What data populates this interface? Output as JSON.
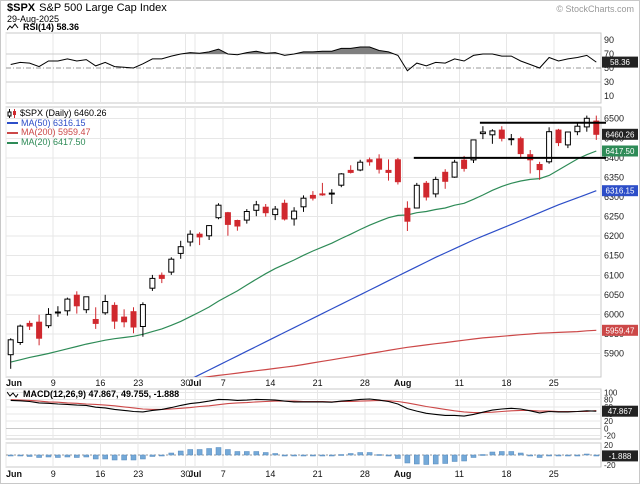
{
  "header": {
    "symbol": "$SPX",
    "name": "S&P 500 Large Cap Index",
    "date": "29-Aug-2025",
    "copyright": "© StockCharts.com"
  },
  "legends": {
    "rsi": "RSI(14) 58.36",
    "macd": "MACD(12,26,9) 47.867, 49.755, -1.888",
    "main": [
      {
        "label": "$SPX (Daily) 6460.26",
        "color": "#000000"
      },
      {
        "label": "MA(50) 6316.15",
        "color": "#2d4ec8"
      },
      {
        "label": "MA(200) 5959.47",
        "color": "#cc4848"
      },
      {
        "label": "MA(20) 6417.50",
        "color": "#2e8b57"
      }
    ]
  },
  "colors": {
    "grid": "#e7e7e7",
    "panel_border": "#c9c9c9",
    "up": "#000000",
    "down": "#d0282e",
    "ma20": "#2e8b57",
    "ma50": "#2d4ec8",
    "ma200": "#cc4848",
    "macd_line": "#000000",
    "macd_signal": "#cc4848",
    "hist_bar": "#74a9d8",
    "hist_bar_edge": "#5588bb",
    "box_dark": "#222222",
    "axis_text": "#222222"
  },
  "chart_data": {
    "type": "candlestick",
    "title": "$SPX S&P 500 Large Cap Index",
    "date": "29-Aug-2025",
    "x_ticks": {
      "indices": [
        0,
        5,
        10,
        14,
        19,
        20,
        23,
        28,
        33,
        38,
        42,
        48,
        53,
        58
      ],
      "labels": [
        "Jun",
        "9",
        "16",
        "23",
        "30",
        "Jul",
        "7",
        "14",
        "21",
        "28",
        "Aug",
        "11",
        "18",
        "25"
      ],
      "is_month": [
        true,
        false,
        false,
        false,
        false,
        true,
        false,
        false,
        false,
        false,
        true,
        false,
        false,
        false
      ]
    },
    "price": {
      "ylim": [
        5840,
        6530
      ],
      "y_ticks": [
        5900,
        5950,
        6000,
        6050,
        6100,
        6150,
        6200,
        6250,
        6300,
        6350,
        6400,
        6450,
        6500
      ],
      "last_label": "6460.26",
      "ma_labels": {
        "ma20": "6417.50",
        "ma50": "6316.15",
        "ma200": "5959.47"
      },
      "trendlines": [
        {
          "price": 6490,
          "from_index": 50
        },
        {
          "price": 6400,
          "from_index": 43
        }
      ],
      "ohlc": [
        [
          5897,
          5939,
          5861,
          5935
        ],
        [
          5928,
          5974,
          5922,
          5970
        ],
        [
          5977,
          5984,
          5960,
          5970
        ],
        [
          5980,
          5999,
          5921,
          5939
        ],
        [
          5971,
          6016,
          5965,
          6000
        ],
        [
          6004,
          6021,
          5994,
          6006
        ],
        [
          6009,
          6043,
          5997,
          6039
        ],
        [
          6049,
          6059,
          6002,
          6022
        ],
        [
          6012,
          6045,
          6003,
          6045
        ],
        [
          5987,
          6018,
          5963,
          5977
        ],
        [
          6004,
          6050,
          5999,
          6033
        ],
        [
          6023,
          6031,
          5963,
          5983
        ],
        [
          5993,
          6013,
          5967,
          5981
        ],
        [
          6007,
          6018,
          5952,
          5968
        ],
        [
          5969,
          6031,
          5943,
          6025
        ],
        [
          6067,
          6101,
          6060,
          6092
        ],
        [
          6100,
          6107,
          6080,
          6092
        ],
        [
          6108,
          6146,
          6101,
          6141
        ],
        [
          6156,
          6188,
          6142,
          6173
        ],
        [
          6185,
          6215,
          6174,
          6205
        ],
        [
          6205,
          6210,
          6177,
          6198
        ],
        [
          6201,
          6228,
          6190,
          6227
        ],
        [
          6247,
          6284,
          6243,
          6279
        ],
        [
          6260,
          6262,
          6201,
          6230
        ],
        [
          6240,
          6242,
          6214,
          6226
        ],
        [
          6241,
          6269,
          6232,
          6263
        ],
        [
          6266,
          6290,
          6251,
          6280
        ],
        [
          6274,
          6282,
          6250,
          6260
        ],
        [
          6255,
          6277,
          6241,
          6269
        ],
        [
          6284,
          6293,
          6240,
          6244
        ],
        [
          6244,
          6274,
          6227,
          6264
        ],
        [
          6275,
          6304,
          6262,
          6297
        ],
        [
          6304,
          6315,
          6291,
          6297
        ],
        [
          6308,
          6336,
          6303,
          6306
        ],
        [
          6310,
          6320,
          6282,
          6310
        ],
        [
          6330,
          6361,
          6325,
          6359
        ],
        [
          6368,
          6381,
          6360,
          6363
        ],
        [
          6369,
          6395,
          6366,
          6389
        ],
        [
          6395,
          6401,
          6380,
          6390
        ],
        [
          6397,
          6409,
          6360,
          6371
        ],
        [
          6368,
          6396,
          6342,
          6363
        ],
        [
          6395,
          6400,
          6332,
          6339
        ],
        [
          6271,
          6289,
          6213,
          6238
        ],
        [
          6272,
          6336,
          6271,
          6330
        ],
        [
          6335,
          6341,
          6291,
          6300
        ],
        [
          6308,
          6352,
          6299,
          6345
        ],
        [
          6363,
          6371,
          6321,
          6340
        ],
        [
          6351,
          6395,
          6349,
          6389
        ],
        [
          6394,
          6405,
          6365,
          6373
        ],
        [
          6395,
          6447,
          6387,
          6446
        ],
        [
          6462,
          6481,
          6448,
          6466
        ],
        [
          6459,
          6473,
          6436,
          6469
        ],
        [
          6471,
          6481,
          6442,
          6450
        ],
        [
          6449,
          6461,
          6432,
          6449
        ],
        [
          6449,
          6454,
          6401,
          6411
        ],
        [
          6408,
          6420,
          6360,
          6395
        ],
        [
          6383,
          6390,
          6344,
          6370
        ],
        [
          6390,
          6478,
          6385,
          6467
        ],
        [
          6471,
          6474,
          6430,
          6439
        ],
        [
          6433,
          6466,
          6425,
          6466
        ],
        [
          6467,
          6488,
          6458,
          6481
        ],
        [
          6479,
          6508,
          6467,
          6501
        ],
        [
          6494,
          6508,
          6446,
          6460.26
        ]
      ],
      "ma20": [
        5878,
        5884,
        5890,
        5895,
        5900,
        5906,
        5912,
        5918,
        5924,
        5929,
        5934,
        5938,
        5941,
        5944,
        5949,
        5956,
        5963,
        5972,
        5982,
        5994,
        6006,
        6019,
        6034,
        6047,
        6060,
        6075,
        6090,
        6104,
        6117,
        6128,
        6139,
        6151,
        6162,
        6172,
        6182,
        6194,
        6205,
        6217,
        6228,
        6238,
        6247,
        6253,
        6254,
        6260,
        6263,
        6268,
        6272,
        6279,
        6284,
        6294,
        6305,
        6317,
        6327,
        6335,
        6341,
        6345,
        6347,
        6355,
        6369,
        6383,
        6397,
        6408,
        6417.5
      ],
      "ma50": [
        5640,
        5650,
        5660,
        5670,
        5680,
        5690,
        5700,
        5710,
        5720,
        5730,
        5740,
        5750,
        5760,
        5770,
        5780,
        5790,
        5800,
        5810,
        5822,
        5834,
        5846,
        5858,
        5870,
        5882,
        5894,
        5906,
        5918,
        5930,
        5942,
        5954,
        5966,
        5978,
        5990,
        6002,
        6014,
        6026,
        6038,
        6050,
        6062,
        6074,
        6086,
        6098,
        6110,
        6122,
        6134,
        6146,
        6157,
        6168,
        6179,
        6190,
        6200,
        6210,
        6220,
        6230,
        6240,
        6250,
        6260,
        6270,
        6280,
        6289,
        6298,
        6307,
        6316.15
      ],
      "ma200": [
        5778,
        5781,
        5784,
        5787,
        5790,
        5793,
        5796,
        5799,
        5802,
        5805,
        5808,
        5811,
        5814,
        5817,
        5820,
        5823,
        5826,
        5829,
        5832,
        5835,
        5838,
        5841,
        5844,
        5847,
        5850,
        5853,
        5856,
        5859,
        5862,
        5865,
        5868,
        5872,
        5876,
        5880,
        5884,
        5888,
        5892,
        5896,
        5900,
        5904,
        5908,
        5912,
        5916,
        5919,
        5922,
        5925,
        5928,
        5931,
        5934,
        5937,
        5940,
        5942,
        5944,
        5946,
        5948,
        5950,
        5952,
        5953,
        5954,
        5955,
        5956,
        5958,
        5959.47
      ]
    },
    "rsi": {
      "ylim": [
        0,
        100
      ],
      "y_ticks": [
        90,
        70,
        50,
        30,
        10
      ],
      "overbought": 70,
      "oversold": 30,
      "mid": 50,
      "last_label": "58.36",
      "values": [
        55,
        58,
        57,
        52,
        60,
        60,
        63,
        60,
        62,
        53,
        58,
        52,
        51,
        50,
        56,
        63,
        63,
        67,
        70,
        72,
        71,
        73,
        77,
        70,
        69,
        72,
        74,
        71,
        72,
        68,
        70,
        73,
        73,
        74,
        74,
        78,
        78,
        80,
        80,
        75,
        73,
        68,
        46,
        57,
        53,
        58,
        57,
        63,
        60,
        68,
        70,
        70,
        67,
        67,
        60,
        55,
        50,
        65,
        60,
        63,
        65,
        68,
        58.36
      ]
    },
    "macd": {
      "ylim": [
        -30,
        110
      ],
      "y_ticks": [
        100,
        80,
        60,
        40,
        20,
        0,
        -20
      ],
      "last_label": "47.867",
      "macd": [
        78,
        77,
        75,
        71,
        70,
        68,
        67,
        65,
        64,
        59,
        57,
        53,
        50,
        47,
        46,
        50,
        53,
        58,
        64,
        69,
        72,
        76,
        81,
        80,
        78,
        79,
        81,
        80,
        79,
        76,
        74,
        74,
        74,
        74,
        73,
        76,
        78,
        81,
        82,
        79,
        75,
        68,
        55,
        48,
        42,
        39,
        36,
        36,
        34,
        39,
        45,
        51,
        54,
        56,
        54,
        49,
        43,
        47,
        46,
        46,
        47,
        49,
        47.867
      ],
      "signal": [
        80,
        79,
        78,
        76,
        74,
        73,
        71,
        70,
        68,
        67,
        65,
        63,
        60,
        57,
        54,
        53,
        53,
        54,
        56,
        58,
        61,
        63,
        66,
        69,
        71,
        72,
        74,
        75,
        76,
        76,
        76,
        75,
        75,
        75,
        74,
        75,
        75,
        76,
        77,
        78,
        77,
        75,
        71,
        66,
        61,
        57,
        53,
        49,
        46,
        44,
        44,
        45,
        47,
        49,
        50,
        50,
        48,
        48,
        47,
        47,
        47,
        47,
        49.755
      ]
    },
    "hist": {
      "ylim": [
        -24,
        24
      ],
      "y_ticks": [
        20,
        0,
        -20
      ],
      "last_label": "-1.888",
      "values": [
        -2,
        -2,
        -3,
        -5,
        -4,
        -5,
        -4,
        -5,
        -4,
        -8,
        -8,
        -10,
        -10,
        -10,
        -8,
        -3,
        0,
        4,
        8,
        11,
        11,
        13,
        15,
        11,
        7,
        7,
        7,
        5,
        3,
        0,
        -2,
        -1,
        -1,
        -1,
        -1,
        1,
        3,
        5,
        5,
        1,
        -2,
        -7,
        -16,
        -18,
        -19,
        -18,
        -17,
        -13,
        -12,
        -5,
        1,
        6,
        7,
        7,
        4,
        -1,
        -5,
        0,
        -2,
        -1,
        0,
        2,
        -1.888
      ]
    }
  }
}
